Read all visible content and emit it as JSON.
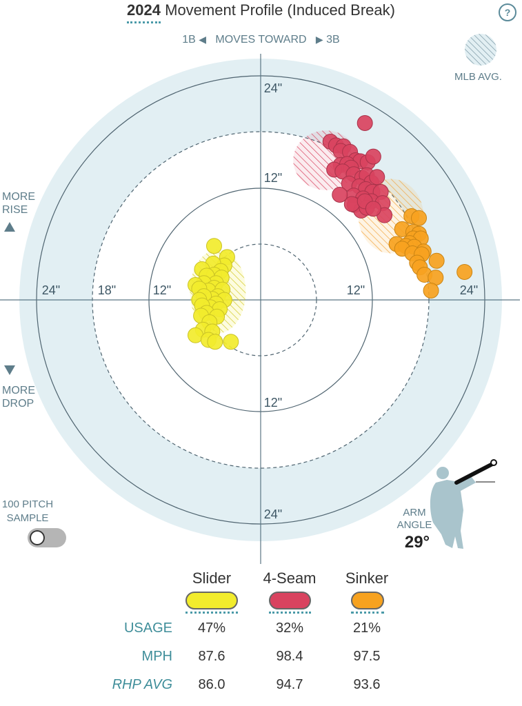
{
  "header": {
    "year": "2024",
    "title": "Movement Profile (Induced Break)",
    "help": "?"
  },
  "direction": {
    "left": "1B",
    "middle": "MOVES TOWARD",
    "right": "3B"
  },
  "mlb_avg_label": "MLB AVG.",
  "side_labels": {
    "rise_1": "MORE",
    "rise_2": "RISE",
    "drop_1": "MORE",
    "drop_2": "DROP"
  },
  "sample": {
    "line1": "100 PITCH",
    "line2": "SAMPLE",
    "enabled": false
  },
  "arm_angle": {
    "line1": "ARM",
    "line2": "ANGLE",
    "value": "29°",
    "degrees": 29
  },
  "colors": {
    "slider": "#f2ec2c",
    "fourseam": "#d9435f",
    "sinker": "#f7a21f",
    "ring_bg": "#e2eff3",
    "axis": "#5a7684",
    "accent": "#4a9aa8"
  },
  "chart_data": {
    "type": "scatter",
    "title": "Movement Profile (Induced Break)",
    "xlabel": "",
    "ylabel": "",
    "xlim": [
      -27,
      27
    ],
    "ylim": [
      -27,
      27
    ],
    "units": "inches",
    "ring_labels": [
      "12\"",
      "24\"",
      "12\"",
      "24\"",
      "24\"",
      "18\"",
      "12\"",
      "12\"",
      "24\""
    ],
    "series": [
      {
        "name": "Slider",
        "key": "slider",
        "color": "#f2ec2c",
        "avg": {
          "x": -4.6,
          "y": 0.9,
          "rx": 3.0,
          "ry": 4.5
        },
        "points": [
          [
            -5.0,
            5.8
          ],
          [
            -3.6,
            4.6
          ],
          [
            -3.9,
            3.7
          ],
          [
            -5.1,
            3.9
          ],
          [
            -6.3,
            3.3
          ],
          [
            -4.3,
            3.1
          ],
          [
            -5.0,
            2.7
          ],
          [
            -5.8,
            2.6
          ],
          [
            -4.2,
            2.4
          ],
          [
            -4.8,
            1.8
          ],
          [
            -6.1,
            1.8
          ],
          [
            -7.0,
            1.6
          ],
          [
            -5.0,
            1.3
          ],
          [
            -5.6,
            1.0
          ],
          [
            -6.6,
            1.2
          ],
          [
            -4.1,
            1.1
          ],
          [
            -4.6,
            0.4
          ],
          [
            -5.2,
            0.1
          ],
          [
            -6.1,
            0.4
          ],
          [
            -6.6,
            0.0
          ],
          [
            -3.9,
            0.0
          ],
          [
            -4.8,
            -0.4
          ],
          [
            -5.4,
            -0.8
          ],
          [
            -6.3,
            -0.6
          ],
          [
            -4.4,
            -1.0
          ],
          [
            -5.8,
            -1.4
          ],
          [
            -4.7,
            -1.8
          ],
          [
            -6.4,
            -1.7
          ],
          [
            -5.5,
            -2.4
          ],
          [
            -6.2,
            -3.2
          ],
          [
            -5.2,
            -3.4
          ],
          [
            -7.0,
            -3.8
          ],
          [
            -5.6,
            -4.3
          ],
          [
            -4.9,
            -4.5
          ],
          [
            -3.2,
            -4.5
          ]
        ]
      },
      {
        "name": "4-Seam",
        "key": "fourseam",
        "color": "#d9435f",
        "avg": {
          "x": 7.0,
          "y": 15.0,
          "rx": 3.5,
          "ry": 3.2
        },
        "points": [
          [
            11.2,
            19.0
          ],
          [
            7.5,
            17.0
          ],
          [
            8.1,
            16.6
          ],
          [
            8.9,
            16.5
          ],
          [
            8.6,
            16.0
          ],
          [
            9.6,
            15.9
          ],
          [
            10.2,
            15.0
          ],
          [
            10.7,
            14.9
          ],
          [
            11.5,
            14.8
          ],
          [
            12.1,
            15.4
          ],
          [
            8.6,
            14.5
          ],
          [
            9.3,
            14.6
          ],
          [
            9.7,
            14.2
          ],
          [
            7.9,
            14.0
          ],
          [
            8.8,
            13.8
          ],
          [
            10.0,
            13.5
          ],
          [
            10.9,
            13.1
          ],
          [
            11.4,
            13.4
          ],
          [
            11.9,
            12.6
          ],
          [
            12.5,
            13.2
          ],
          [
            9.5,
            12.5
          ],
          [
            10.6,
            12.2
          ],
          [
            11.3,
            11.9
          ],
          [
            12.0,
            11.6
          ],
          [
            12.9,
            11.6
          ],
          [
            10.0,
            11.2
          ],
          [
            11.0,
            10.9
          ],
          [
            11.9,
            10.6
          ],
          [
            13.1,
            10.4
          ],
          [
            8.5,
            11.3
          ],
          [
            10.1,
            10.2
          ],
          [
            10.8,
            9.6
          ],
          [
            11.4,
            9.9
          ],
          [
            13.3,
            9.1
          ],
          [
            9.8,
            10.3
          ],
          [
            11.2,
            10.6
          ],
          [
            12.1,
            9.8
          ]
        ]
      },
      {
        "name": "Sinker",
        "key": "sinker",
        "color": "#f7a21f",
        "avg": {
          "x": 14.0,
          "y": 9.0,
          "rx": 3.5,
          "ry": 4.0
        },
        "points": [
          [
            16.2,
            9.0
          ],
          [
            17.0,
            8.8
          ],
          [
            15.2,
            7.6
          ],
          [
            16.4,
            7.3
          ],
          [
            17.0,
            7.1
          ],
          [
            16.4,
            6.6
          ],
          [
            17.2,
            6.6
          ],
          [
            16.0,
            6.1
          ],
          [
            14.6,
            6.0
          ],
          [
            15.6,
            5.8
          ],
          [
            16.5,
            5.7
          ],
          [
            15.2,
            5.5
          ],
          [
            17.5,
            5.2
          ],
          [
            16.3,
            5.0
          ],
          [
            17.3,
            4.9
          ],
          [
            16.8,
            4.0
          ],
          [
            18.9,
            4.2
          ],
          [
            17.1,
            3.5
          ],
          [
            17.6,
            2.7
          ],
          [
            18.8,
            2.4
          ],
          [
            21.9,
            3.0
          ],
          [
            18.3,
            1.0
          ]
        ]
      }
    ]
  },
  "table": {
    "pitches": [
      "Slider",
      "4-Seam",
      "Sinker"
    ],
    "rows": [
      {
        "label": "USAGE",
        "values": [
          "47%",
          "32%",
          "21%"
        ]
      },
      {
        "label": "MPH",
        "values": [
          "87.6",
          "98.4",
          "97.5"
        ]
      },
      {
        "label": "RHP AVG",
        "values": [
          "86.0",
          "94.7",
          "93.6"
        ]
      }
    ]
  }
}
